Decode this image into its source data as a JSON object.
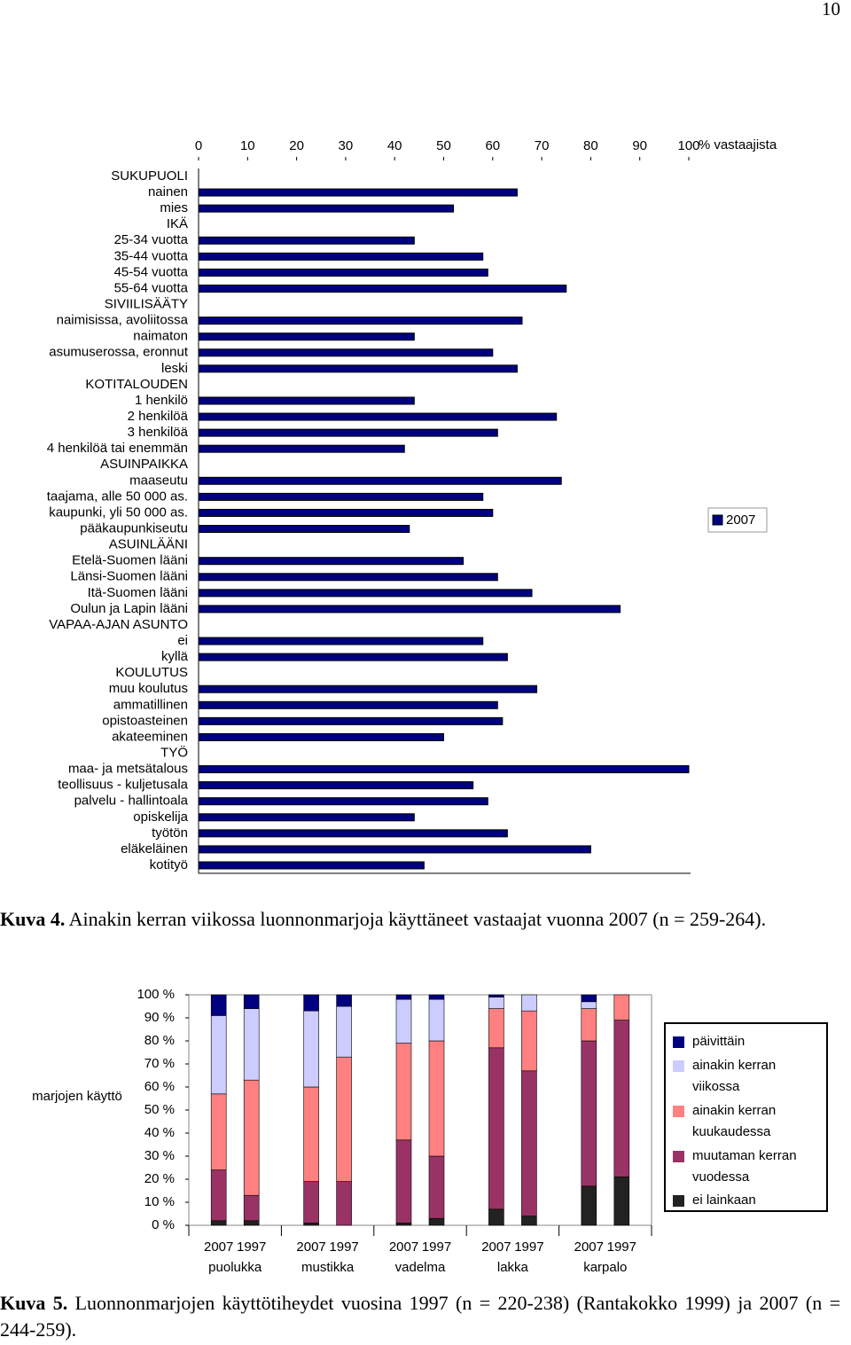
{
  "page_number": "10",
  "chart_data": [
    {
      "type": "hbar",
      "xlabel": "% vastaajista",
      "xlim": [
        0,
        100
      ],
      "xticks": [
        0,
        10,
        20,
        30,
        40,
        50,
        60,
        70,
        80,
        90,
        100
      ],
      "grid": false,
      "legend": "right",
      "categories": [
        "SUKUPUOLI",
        "nainen",
        "mies",
        "IKÄ",
        "25-34 vuotta",
        "35-44 vuotta",
        "45-54 vuotta",
        "55-64 vuotta",
        "SIVIILISÄÄTY",
        "naimisissa, avoliitossa",
        "naimaton",
        "asumuserossa, eronnut",
        "leski",
        "KOTITALOUDEN",
        "1 henkilö",
        "2 henkilöä",
        "3 henkilöä",
        "4 henkilöä tai enemmän",
        "ASUINPAIKKA",
        "maaseutu",
        "taajama, alle 50 000 as.",
        "kaupunki, yli 50 000 as.",
        "pääkaupunkiseutu",
        "ASUINLÄÄNI",
        "Etelä-Suomen lääni",
        "Länsi-Suomen lääni",
        "Itä-Suomen lääni",
        "Oulun ja Lapin lääni",
        "VAPAA-AJAN ASUNTO",
        "ei",
        "kyllä",
        "KOULUTUS",
        "muu koulutus",
        "ammatillinen",
        "opistoasteinen",
        "akateeminen",
        "TYÖ",
        "maa- ja metsätalous",
        "teollisuus - kuljetusala",
        "palvelu - hallintoala",
        "opiskelija",
        "työtön",
        "eläkeläinen",
        "kotityö"
      ],
      "series": [
        {
          "name": "2007",
          "color": "#000080",
          "values": [
            null,
            65,
            52,
            null,
            44,
            58,
            59,
            75,
            null,
            66,
            44,
            60,
            65,
            null,
            44,
            73,
            61,
            42,
            null,
            74,
            58,
            60,
            43,
            null,
            54,
            61,
            68,
            86,
            null,
            58,
            63,
            null,
            69,
            61,
            62,
            50,
            null,
            100,
            56,
            59,
            44,
            63,
            80,
            46
          ]
        }
      ]
    },
    {
      "type": "stacked_bar",
      "ylabel": "marjojen käyttö",
      "ylim": [
        0,
        100
      ],
      "yticks": [
        {
          "value": 0,
          "label": "0 %"
        },
        {
          "value": 10,
          "label": "10 %"
        },
        {
          "value": 20,
          "label": "20 %"
        },
        {
          "value": 30,
          "label": "30 %"
        },
        {
          "value": 40,
          "label": "40 %"
        },
        {
          "value": 50,
          "label": "50 %"
        },
        {
          "value": 60,
          "label": "60 %"
        },
        {
          "value": 70,
          "label": "70 %"
        },
        {
          "value": 80,
          "label": "80 %"
        },
        {
          "value": 90,
          "label": "90 %"
        },
        {
          "value": 100,
          "label": "100 %"
        }
      ],
      "grid": false,
      "legend": "right",
      "categories": [
        "2007",
        "1997",
        "2007",
        "1997",
        "2007",
        "1997",
        "2007",
        "1997",
        "2007",
        "1997"
      ],
      "groups": [
        "puolukka",
        "mustikka",
        "vadelma",
        "lakka",
        "karpalo"
      ],
      "series": [
        {
          "name": "ei lainkaan",
          "color": "#222222",
          "values": [
            2,
            2,
            1,
            0,
            1,
            3,
            7,
            4,
            17,
            21
          ]
        },
        {
          "name": "muutaman kerran vuodessa",
          "color": "#993366",
          "values": [
            22,
            11,
            18,
            19,
            36,
            27,
            70,
            63,
            63,
            68
          ]
        },
        {
          "name": "ainakin kerran kuukaudessa",
          "color": "#ff8080",
          "values": [
            33,
            50,
            41,
            54,
            42,
            50,
            17,
            26,
            14,
            11
          ]
        },
        {
          "name": "ainakin kerran viikossa",
          "color": "#ccccff",
          "values": [
            34,
            31,
            33,
            22,
            19,
            18,
            5,
            7,
            3,
            0
          ]
        },
        {
          "name": "päivittäin",
          "color": "#000080",
          "values": [
            9,
            6,
            7,
            5,
            2,
            2,
            1,
            0,
            3,
            0
          ]
        }
      ]
    }
  ],
  "captions": [
    {
      "label": "Kuva 4.",
      "text": "Ainakin kerran viikossa luonnonmarjoja käyttäneet vastaajat vuonna 2007 (n = 259-264)."
    },
    {
      "label": "Kuva 5.",
      "text": "Luonnonmarjojen käyttötiheydet vuosina 1997 (n = 220-238) (Rantakokko 1999) ja 2007 (n = 244-259)."
    }
  ]
}
